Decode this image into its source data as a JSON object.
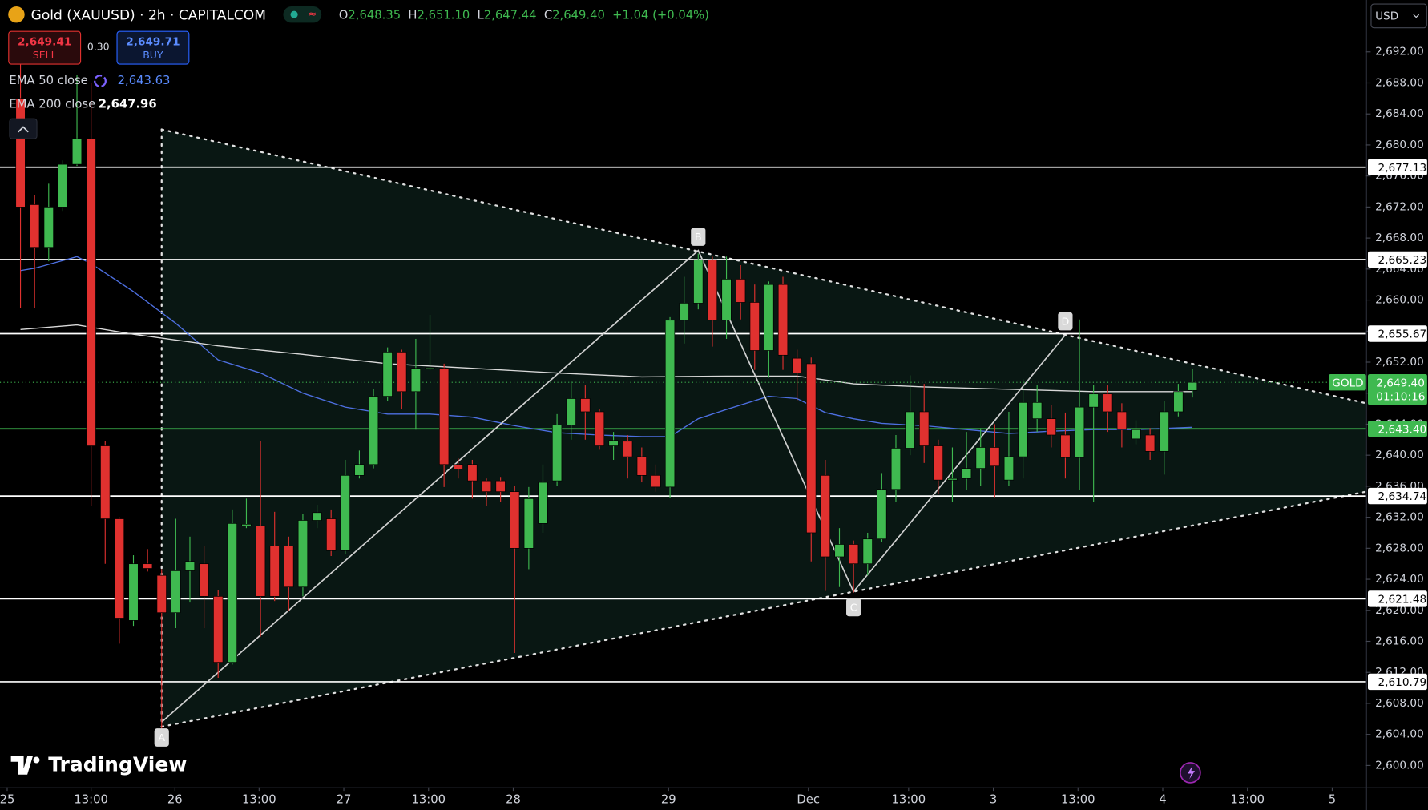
{
  "chart_data": {
    "type": "candlestick",
    "title": "Gold (XAUUSD) · 2h · CAPITALCOM",
    "ohlc_header": {
      "o_label": "O",
      "o": "2,648.35",
      "h_label": "H",
      "h": "2,651.10",
      "l_label": "L",
      "l": "2,647.44",
      "c_label": "C",
      "c": "2,649.40",
      "change": "+1.04 (+0.04%)"
    },
    "trade": {
      "sell_price": "2,649.41",
      "sell_label": "SELL",
      "spread": "0.30",
      "buy_price": "2,649.71",
      "buy_label": "BUY"
    },
    "currency": "USD",
    "brand": "TradingView",
    "up_color": "#3fb950",
    "down_color": "#e0312f",
    "open": [
      2686,
      2672.3,
      2666.8,
      2672,
      2677.5,
      2680.8,
      2641.2,
      2631.8,
      2618.7,
      2626,
      2624.5,
      2619.7,
      2625.1,
      2626,
      2621.8,
      2613.3,
      2630.9,
      2630.9,
      2628.3,
      2628.3,
      2623,
      2631.6,
      2631.8,
      2627.7,
      2637.4,
      2638.8,
      2647.6,
      2653.3,
      2648.2,
      2651.2,
      2651.2,
      2638.8,
      2638.8,
      2636.7,
      2636.7,
      2635.3,
      2628,
      2631.2,
      2636.7,
      2643.9,
      2647.3,
      2645.6,
      2641.2,
      2641.8,
      2639.8,
      2637.4,
      2635.9,
      2657.4,
      2659.6,
      2665.2,
      2657.4,
      2662.7,
      2659.7,
      2653.5,
      2662,
      2652.5,
      2651.8,
      2637.4,
      2626.9,
      2628.5,
      2626,
      2629.2,
      2635.6,
      2640.9,
      2645.6,
      2641.2,
      2636.8,
      2637,
      2638.3,
      2641,
      2636.8,
      2639.8,
      2644.7,
      2644.7,
      2642.6,
      2639.7,
      2646.2,
      2647.9,
      2645.6,
      2642.1,
      2642.6,
      2640.5,
      2645.6,
      2648.35
    ],
    "high": [
      2692,
      2673.5,
      2675,
      2678,
      2689,
      2688,
      2641.8,
      2632,
      2627.1,
      2627.9,
      2625.3,
      2631.8,
      2629.5,
      2628.3,
      2622.6,
      2633,
      2634.4,
      2641.8,
      2632.7,
      2629.5,
      2632.4,
      2633.6,
      2633,
      2639.4,
      2640.6,
      2648.5,
      2653.9,
      2653.6,
      2655,
      2658.1,
      2651.8,
      2639.6,
      2639.4,
      2637,
      2637.2,
      2636,
      2635.9,
      2638.8,
      2645.3,
      2649.5,
      2649,
      2646,
      2643,
      2642.6,
      2641,
      2638.8,
      2657.8,
      2663,
      2666,
      2665.6,
      2665.6,
      2664.5,
      2662,
      2662.4,
      2663,
      2653.6,
      2652.6,
      2639.4,
      2630.6,
      2629,
      2630,
      2637.7,
      2642.6,
      2650.3,
      2649.2,
      2642,
      2641,
      2643,
      2643.5,
      2644,
      2645.6,
      2649.8,
      2649,
      2646.5,
      2645.5,
      2657.5,
      2649,
      2649,
      2646.7,
      2644.5,
      2643.5,
      2647,
      2649.2,
      2651.1
    ],
    "low": [
      2659,
      2659,
      2665,
      2671.5,
      2677.3,
      2633.5,
      2626,
      2615.7,
      2618,
      2625,
      2604.2,
      2617.7,
      2621,
      2617.7,
      2611.3,
      2613,
      2630.6,
      2616.6,
      2621.2,
      2620,
      2621.8,
      2630.6,
      2627,
      2627.3,
      2637,
      2638.3,
      2647,
      2645.9,
      2643.3,
      2651,
      2635.9,
      2637,
      2634.4,
      2633.5,
      2634,
      2614.5,
      2625.3,
      2630,
      2636,
      2642,
      2642,
      2640.7,
      2639.4,
      2637,
      2636.5,
      2635.3,
      2634.5,
      2654.4,
      2658.8,
      2654,
      2655,
      2657.5,
      2651,
      2650,
      2651,
      2647,
      2626.3,
      2622.5,
      2623,
      2622.3,
      2624.5,
      2628.8,
      2634,
      2640,
      2639,
      2635,
      2634,
      2635.5,
      2636,
      2634.6,
      2636,
      2637,
      2643,
      2641,
      2637,
      2635.5,
      2634,
      2643,
      2641,
      2641.4,
      2639.4,
      2637.5,
      2645,
      2647.44
    ],
    "close": [
      2672,
      2666.8,
      2672,
      2677.5,
      2680.8,
      2641.2,
      2631.8,
      2619,
      2626,
      2625.4,
      2619.7,
      2625.1,
      2626.3,
      2621.8,
      2613.3,
      2631.2,
      2631.1,
      2621.8,
      2621.8,
      2623,
      2631.6,
      2632.6,
      2627.7,
      2637.4,
      2638.8,
      2647.6,
      2653.3,
      2648.2,
      2651.2,
      2651.3,
      2638.8,
      2638.2,
      2636.7,
      2635.3,
      2635.3,
      2628,
      2634.4,
      2636.5,
      2643.9,
      2647.3,
      2645.6,
      2641.2,
      2641.9,
      2639.8,
      2637.4,
      2635.9,
      2657.4,
      2659.6,
      2665.2,
      2657.4,
      2662.7,
      2659.7,
      2653.5,
      2662,
      2652.9,
      2650.6,
      2630,
      2626.9,
      2628.5,
      2626,
      2629.2,
      2635.6,
      2640.9,
      2645.6,
      2641.2,
      2636.8,
      2637,
      2638.3,
      2641,
      2638.6,
      2639.8,
      2646.8,
      2646.8,
      2642.6,
      2639.7,
      2646.2,
      2647.9,
      2645.6,
      2643.3,
      2643.3,
      2640.5,
      2645.6,
      2648.2,
      2649.4
    ],
    "series": [
      {
        "name": "EMA 50 close",
        "value_label": "2,643.63",
        "color": "#4d6fe0",
        "x": [
          0,
          1,
          4,
          5,
          8,
          11,
          14,
          17,
          20,
          23,
          26,
          29,
          32,
          35,
          38,
          41,
          44,
          46,
          48,
          50,
          53,
          55,
          57,
          59,
          61,
          64,
          67,
          70,
          73,
          76,
          79,
          83
        ],
        "values": [
          2663.8,
          2664.1,
          2665.6,
          2664.7,
          2661.1,
          2657,
          2652.3,
          2650.6,
          2648,
          2646.2,
          2645.3,
          2645.3,
          2644.9,
          2643.8,
          2642.9,
          2642.6,
          2642.4,
          2642.4,
          2644.7,
          2645.9,
          2647.6,
          2647.3,
          2645.5,
          2644.7,
          2644.1,
          2643.8,
          2643.3,
          2642.8,
          2643.1,
          2643.3,
          2643.3,
          2643.6
        ]
      },
      {
        "name": "EMA 200 close",
        "value_label": "2,647.96",
        "color": "#d9d9d9",
        "x": [
          0,
          4,
          8,
          14,
          20,
          26,
          32,
          38,
          44,
          50,
          55,
          59,
          64,
          70,
          76,
          83
        ],
        "values": [
          2656.2,
          2656.8,
          2655.6,
          2654.1,
          2653,
          2651.8,
          2651.2,
          2650.6,
          2650.1,
          2650.2,
          2650.2,
          2649.2,
          2648.8,
          2648.5,
          2648.2,
          2648.2
        ]
      }
    ],
    "levels": [
      {
        "value": 2677.13,
        "label": "2,677.13",
        "color": "#ffffff"
      },
      {
        "value": 2665.23,
        "label": "2,665.23",
        "color": "#ffffff"
      },
      {
        "value": 2655.67,
        "label": "2,655.67",
        "color": "#ffffff"
      },
      {
        "value": 2643.4,
        "label": "2,643.40",
        "color": "#3fb950"
      },
      {
        "value": 2634.74,
        "label": "2,634.74",
        "color": "#ffffff"
      },
      {
        "value": 2621.48,
        "label": "2,621.48",
        "color": "#ffffff"
      },
      {
        "value": 2610.79,
        "label": "2,610.79",
        "color": "#ffffff"
      }
    ],
    "last_price": {
      "symbol": "GOLD",
      "value": 2649.4,
      "label": "2,649.40",
      "countdown": "01:10:16"
    },
    "pattern": {
      "points": [
        {
          "label": "A",
          "x": 10,
          "y": 2605.6
        },
        {
          "label": "B",
          "x": 48,
          "y": 2666.4
        },
        {
          "label": "C",
          "x": 59,
          "y": 2622.4
        },
        {
          "label": "D",
          "x": 74,
          "y": 2655.5
        }
      ],
      "upper": {
        "x": [
          10,
          95.3
        ],
        "y": [
          2682,
          2646.7
        ]
      },
      "lower": {
        "x": [
          10,
          95.3
        ],
        "y": [
          2605,
          2635.3
        ]
      }
    },
    "xlim": [
      -1.45,
      95.3
    ],
    "ylim": [
      2597.19,
      2698.69
    ],
    "xticks": [
      {
        "value": -0.94,
        "label": "25"
      },
      {
        "value": 5,
        "label": "13:00"
      },
      {
        "value": 10.94,
        "label": "26"
      },
      {
        "value": 16.9,
        "label": "13:00"
      },
      {
        "value": 22.9,
        "label": "27"
      },
      {
        "value": 28.9,
        "label": "13:00"
      },
      {
        "value": 34.9,
        "label": "28"
      },
      {
        "value": 45.9,
        "label": "29"
      },
      {
        "value": 55.8,
        "label": "Dec"
      },
      {
        "value": 62.9,
        "label": "13:00"
      },
      {
        "value": 68.9,
        "label": "3"
      },
      {
        "value": 74.9,
        "label": "13:00"
      },
      {
        "value": 80.9,
        "label": "4"
      },
      {
        "value": 86.9,
        "label": "13:00"
      },
      {
        "value": 92.9,
        "label": "5"
      }
    ],
    "yticks": [
      {
        "value": 2600,
        "label": "2,600.00"
      },
      {
        "value": 2604,
        "label": "2,604.00"
      },
      {
        "value": 2608,
        "label": "2,608.00"
      },
      {
        "value": 2612,
        "label": "2,612.00"
      },
      {
        "value": 2616,
        "label": "2,616.00"
      },
      {
        "value": 2620,
        "label": "2,620.00"
      },
      {
        "value": 2624,
        "label": "2,624.00"
      },
      {
        "value": 2628,
        "label": "2,628.00"
      },
      {
        "value": 2632,
        "label": "2,632.00"
      },
      {
        "value": 2636,
        "label": "2,636.00"
      },
      {
        "value": 2640,
        "label": "2,640.00"
      },
      {
        "value": 2644,
        "label": "2,644.00"
      },
      {
        "value": 2648,
        "label": "2,648.00"
      },
      {
        "value": 2652,
        "label": "2,652.00"
      },
      {
        "value": 2656,
        "label": "2,656.00"
      },
      {
        "value": 2660,
        "label": "2,660.00"
      },
      {
        "value": 2664,
        "label": "2,664.00"
      },
      {
        "value": 2668,
        "label": "2,668.00"
      },
      {
        "value": 2672,
        "label": "2,672.00"
      },
      {
        "value": 2676,
        "label": "2,676.00"
      },
      {
        "value": 2680,
        "label": "2,680.00"
      },
      {
        "value": 2684,
        "label": "2,684.00"
      },
      {
        "value": 2688,
        "label": "2,688.00"
      },
      {
        "value": 2692,
        "label": "2,692.00"
      }
    ]
  }
}
